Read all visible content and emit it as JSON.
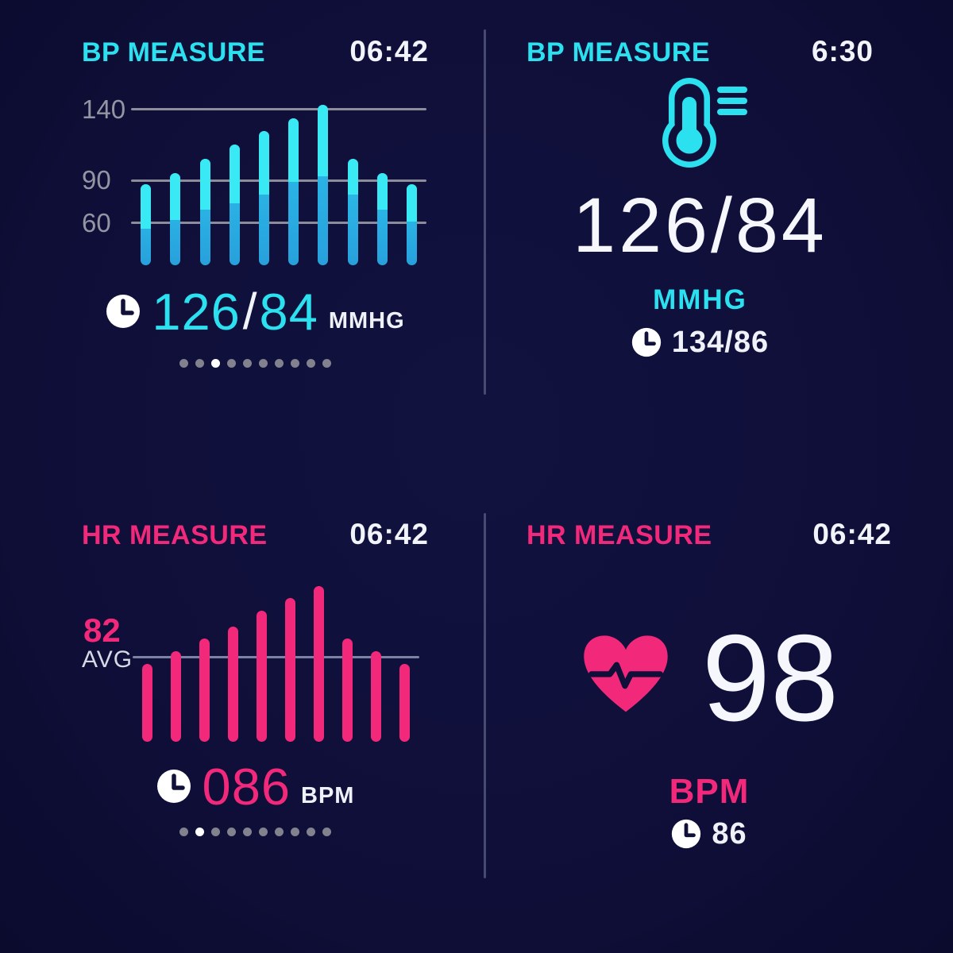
{
  "colors": {
    "background": "#0f0f3a",
    "cyan": "#2be1f0",
    "pink": "#f2297b",
    "white": "#f5f7fd",
    "bar_cyan_bright": "#39e9f3",
    "bar_cyan_deep": "#28a7e0",
    "gridline_gray": "#8c8c9a",
    "dot_inactive": "#82828e",
    "dot_active": "#ffffff",
    "divider": "#5c5e86"
  },
  "icons": {
    "clock": "clock-icon",
    "bp_gauge": "bp-gauge-icon",
    "heart": "heart-pulse-icon"
  },
  "panels": {
    "bp_chart": {
      "title": "BP MEASURE",
      "time": "06:42",
      "reading": {
        "systolic": "126",
        "slash": "/",
        "diastolic": "84",
        "unit": "MMHG"
      },
      "pagination": {
        "count": 10,
        "active_index": 2
      }
    },
    "bp_detail": {
      "title": "BP MEASURE",
      "time": "6:30",
      "value": "126/84",
      "unit": "MMHG",
      "history": "134/86"
    },
    "hr_chart": {
      "title": "HR MEASURE",
      "time": "06:42",
      "avg_value": "82",
      "avg_label": "AVG",
      "reading": {
        "value": "086",
        "unit": "BPM"
      },
      "pagination": {
        "count": 10,
        "active_index": 1
      }
    },
    "hr_detail": {
      "title": "HR MEASURE",
      "time": "06:42",
      "value": "98",
      "unit": "BPM",
      "history": "86"
    }
  },
  "chart_data": [
    {
      "type": "bar",
      "name": "bp-history",
      "title": "BP MEASURE",
      "ylabels": [
        140,
        90,
        60
      ],
      "ylim": [
        30,
        150
      ],
      "grid": true,
      "series": [
        {
          "name": "systolic",
          "values": [
            87,
            95,
            105,
            115,
            125,
            134,
            143,
            105,
            95,
            87
          ]
        },
        {
          "name": "diastolic",
          "values": [
            56,
            62,
            69,
            74,
            80,
            89,
            93,
            80,
            69,
            61
          ]
        }
      ]
    },
    {
      "type": "bar",
      "name": "hr-history",
      "title": "HR MEASURE",
      "avg_line": 82,
      "avg_label": "AVG",
      "ylim": [
        55,
        110
      ],
      "grid": "single-avg-line",
      "values": [
        80,
        84,
        88,
        92,
        97,
        101,
        105,
        88,
        84,
        80
      ]
    }
  ]
}
